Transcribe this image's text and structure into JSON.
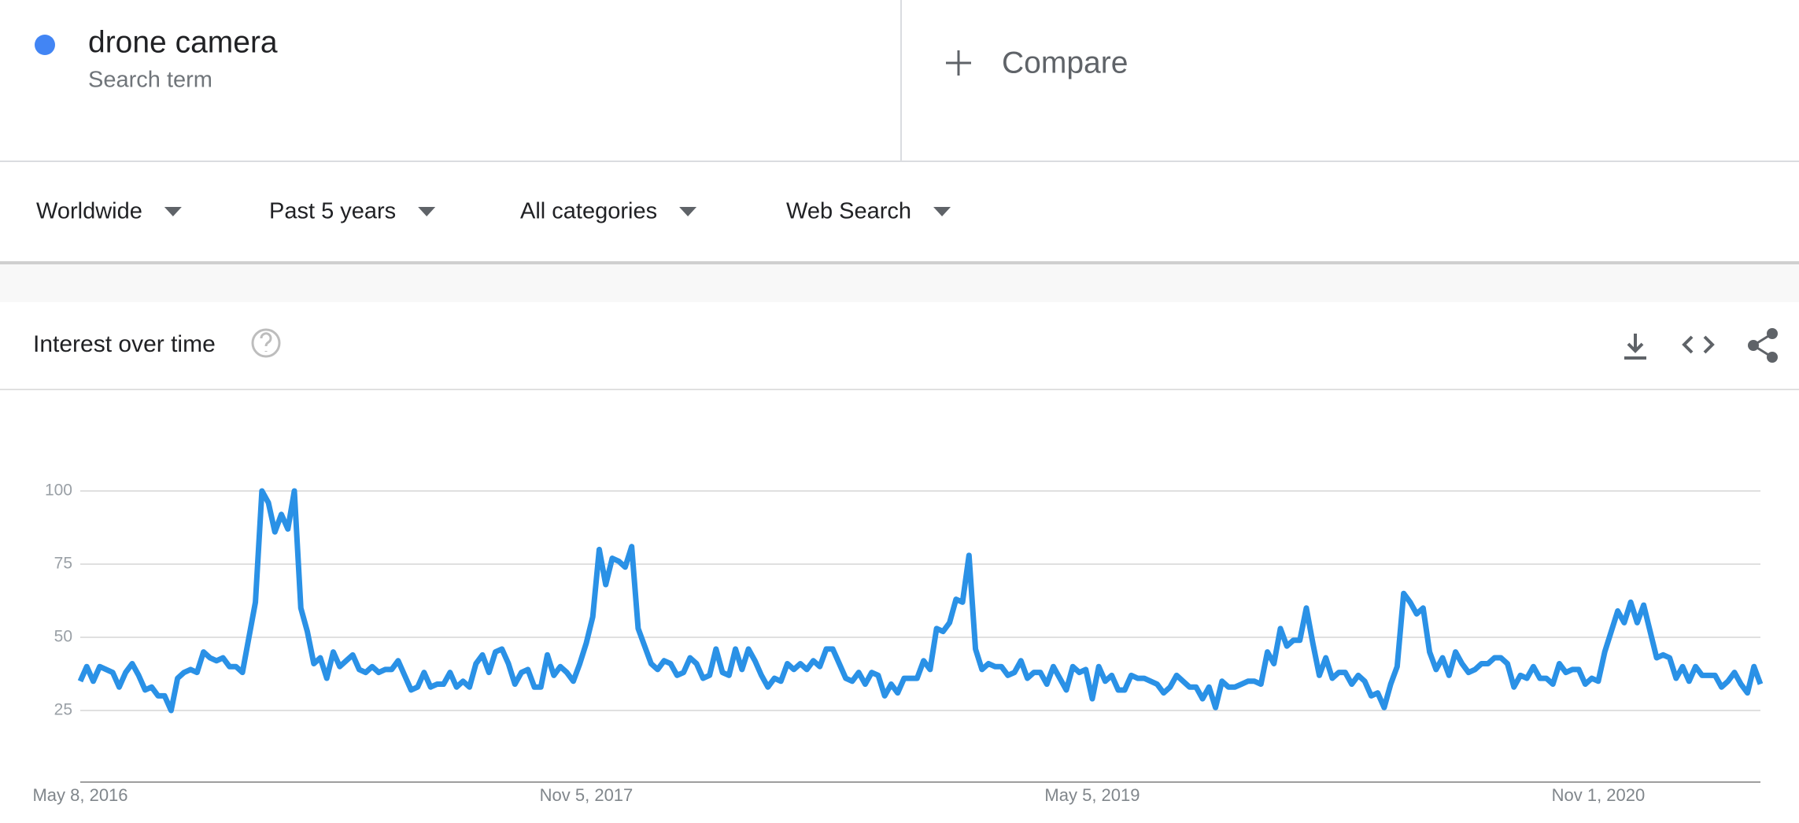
{
  "search_term": {
    "name": "drone camera",
    "subtitle": "Search term"
  },
  "compare": "Compare",
  "filters": [
    "Worldwide",
    "Past 5 years",
    "All categories",
    "Web Search"
  ],
  "card_title": "Interest over time",
  "chart_data": {
    "type": "line",
    "color": "#2a91e6",
    "categories": [
      "May 8, 2016",
      null,
      null,
      null,
      null,
      null,
      null,
      null,
      null,
      null,
      null,
      null,
      null,
      null,
      null,
      null,
      null,
      null,
      null,
      null,
      null,
      null,
      null,
      null,
      null,
      null,
      null,
      null,
      null,
      null,
      null,
      null,
      null,
      null,
      null,
      null,
      null,
      null,
      null,
      null,
      null,
      null,
      null,
      null,
      null,
      null,
      null,
      null,
      null,
      null,
      null,
      null,
      null,
      null,
      null,
      null,
      null,
      null,
      null,
      null,
      null,
      null,
      null,
      null,
      null,
      null,
      null,
      null,
      null,
      null,
      null,
      null,
      null,
      null,
      null,
      null,
      null,
      null,
      "Nov 5, 2017",
      null,
      null,
      null,
      null,
      null,
      null,
      null,
      null,
      null,
      null,
      null,
      null,
      null,
      null,
      null,
      null,
      null,
      null,
      null,
      null,
      null,
      null,
      null,
      null,
      null,
      null,
      null,
      null,
      null,
      null,
      null,
      null,
      null,
      null,
      null,
      null,
      null,
      null,
      null,
      null,
      null,
      null,
      null,
      null,
      null,
      null,
      null,
      null,
      null,
      null,
      null,
      null,
      null,
      null,
      null,
      null,
      null,
      null,
      null,
      null,
      null,
      null,
      null,
      null,
      null,
      null,
      null,
      null,
      null,
      null,
      null,
      null,
      null,
      null,
      null,
      null,
      null,
      "May 5, 2019",
      null,
      null,
      null,
      null,
      null,
      null,
      null,
      null,
      null,
      null,
      null,
      null,
      null,
      null,
      null,
      null,
      null,
      null,
      null,
      null,
      null,
      null,
      null,
      null,
      null,
      null,
      null,
      null,
      null,
      null,
      null,
      null,
      null,
      null,
      null,
      null,
      null,
      null,
      null,
      null,
      null,
      null,
      null,
      null,
      null,
      null,
      null,
      null,
      null,
      null,
      null,
      null,
      null,
      null,
      null,
      null,
      null,
      null,
      null,
      null,
      null,
      null,
      null,
      null,
      null,
      null,
      null,
      null,
      null,
      null,
      null,
      null,
      null,
      null,
      null,
      null,
      null,
      "Nov 1, 2020",
      null,
      null,
      null,
      null,
      null,
      null,
      null,
      null,
      null,
      null,
      null,
      null,
      null,
      null,
      null,
      null,
      null,
      null,
      null,
      null,
      null,
      null,
      null,
      null,
      null
    ],
    "values": [
      35,
      40,
      35,
      40,
      39,
      38,
      33,
      38,
      41,
      37,
      32,
      33,
      30,
      30,
      25,
      36,
      38,
      39,
      38,
      45,
      43,
      42,
      43,
      40,
      40,
      38,
      50,
      62,
      100,
      96,
      86,
      92,
      87,
      100,
      60,
      52,
      41,
      43,
      36,
      45,
      40,
      42,
      44,
      39,
      38,
      40,
      38,
      39,
      39,
      42,
      37,
      32,
      33,
      38,
      33,
      34,
      34,
      38,
      33,
      35,
      33,
      41,
      44,
      38,
      45,
      46,
      41,
      34,
      38,
      39,
      33,
      33,
      44,
      37,
      40,
      38,
      35,
      41,
      48,
      57,
      80,
      68,
      77,
      76,
      74,
      81,
      53,
      47,
      41,
      39,
      42,
      41,
      37,
      38,
      43,
      41,
      36,
      37,
      46,
      38,
      37,
      46,
      39,
      46,
      42,
      37,
      33,
      36,
      35,
      41,
      39,
      41,
      39,
      42,
      40,
      46,
      46,
      41,
      36,
      35,
      38,
      34,
      38,
      37,
      30,
      34,
      31,
      36,
      36,
      36,
      42,
      39,
      53,
      52,
      55,
      63,
      62,
      78,
      46,
      39,
      41,
      40,
      40,
      37,
      38,
      42,
      36,
      38,
      38,
      34,
      40,
      36,
      32,
      40,
      38,
      39,
      29,
      40,
      35,
      37,
      32,
      32,
      37,
      36,
      36,
      35,
      34,
      31,
      33,
      37,
      35,
      33,
      33,
      29,
      33,
      26,
      35,
      33,
      33,
      34,
      35,
      35,
      34,
      45,
      41,
      53,
      47,
      49,
      49,
      60,
      48,
      37,
      43,
      36,
      38,
      38,
      34,
      37,
      35,
      30,
      31,
      26,
      34,
      40,
      65,
      62,
      58,
      60,
      45,
      39,
      43,
      37,
      45,
      41,
      38,
      39,
      41,
      41,
      43,
      43,
      41,
      33,
      37,
      36,
      40,
      36,
      36,
      34,
      41,
      38,
      39,
      39,
      34,
      36,
      35,
      45,
      52,
      59,
      55,
      62,
      55,
      61,
      52,
      43,
      44,
      43,
      36,
      40,
      35,
      40,
      37,
      37,
      37,
      33,
      35,
      38,
      34,
      31,
      40,
      34
    ],
    "ylim": [
      0,
      100
    ],
    "yticks": [
      25,
      50,
      75,
      100
    ],
    "grid": true
  }
}
